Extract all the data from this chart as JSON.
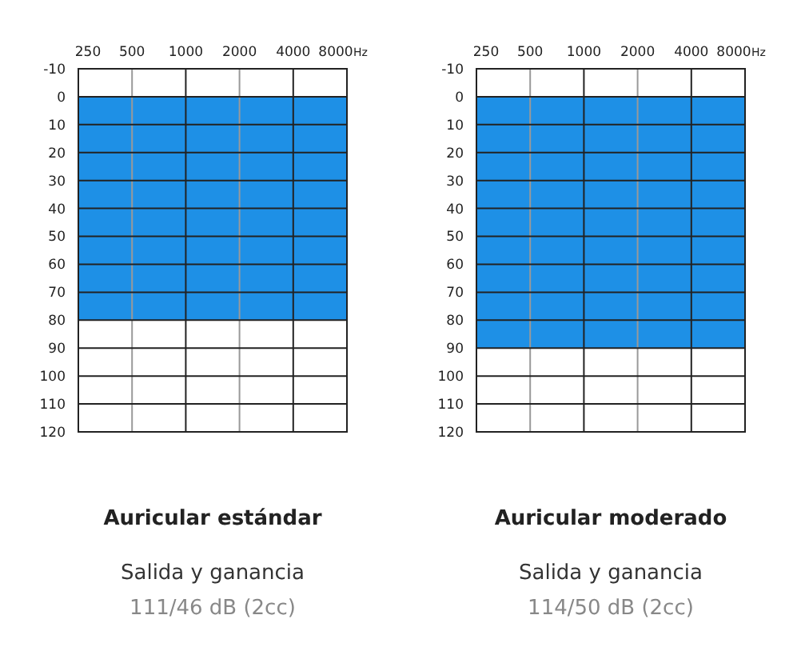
{
  "chart_data": [
    {
      "type": "area",
      "title": "Auricular estándar",
      "xlabel": "Hz",
      "log": "x",
      "xlim": [
        250,
        8000
      ],
      "xticks": [
        250,
        500,
        1000,
        2000,
        4000,
        8000
      ],
      "ylim": [
        120,
        -10
      ],
      "yticks": [
        -10,
        0,
        10,
        20,
        30,
        40,
        50,
        60,
        70,
        80,
        90,
        100,
        110,
        120
      ],
      "grid": true,
      "bands": [
        {
          "axis": "y",
          "from": 0,
          "to": 80,
          "color": "#1e90e6"
        }
      ],
      "annotations": [
        "Salida y ganancia",
        "111/46 dB (2cc)"
      ]
    },
    {
      "type": "area",
      "title": "Auricular moderado",
      "xlabel": "Hz",
      "log": "x",
      "xlim": [
        250,
        8000
      ],
      "xticks": [
        250,
        500,
        1000,
        2000,
        4000,
        8000
      ],
      "ylim": [
        120,
        -10
      ],
      "yticks": [
        -10,
        0,
        10,
        20,
        30,
        40,
        50,
        60,
        70,
        80,
        90,
        100,
        110,
        120
      ],
      "grid": true,
      "bands": [
        {
          "axis": "y",
          "from": 0,
          "to": 90,
          "color": "#1e90e6"
        }
      ],
      "annotations": [
        "Salida y ganancia",
        "114/50 dB (2cc)"
      ]
    }
  ]
}
